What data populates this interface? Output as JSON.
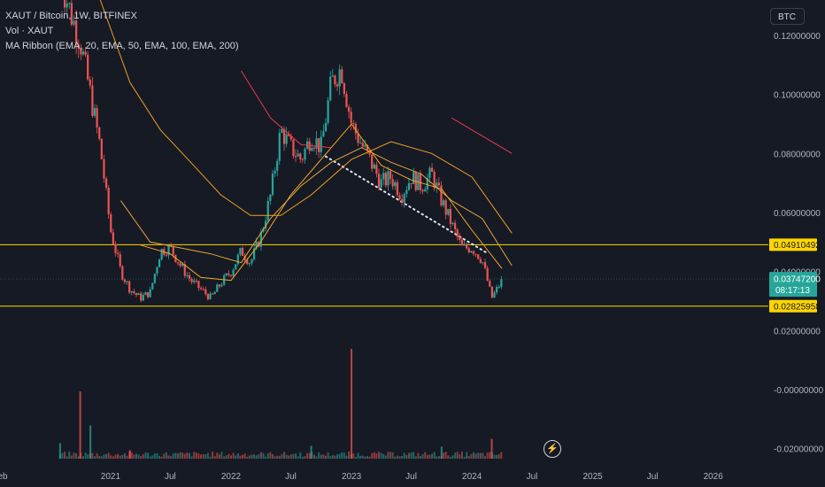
{
  "legend": {
    "symbol": "XAUT / Bitcoin, 1W, BITFINEX",
    "volume": "Vol · XAUT",
    "ma_ribbon": "MA Ribbon (EMA, 20, EMA, 50, EMA, 100, EMA, 200)"
  },
  "currency_button": "BTC",
  "colors": {
    "background": "#161a25",
    "up": "#26a69a",
    "down": "#ef5350",
    "ema20": "#f5a623",
    "ema50": "#e8a33a",
    "ema100": "#f0a020",
    "ema200": "#e53950",
    "level_line": "#ffd600",
    "price_label": "#26a69a"
  },
  "chart_data": {
    "type": "candlestick",
    "title": "",
    "y_axis": {
      "ticks": [
        "0.12000000",
        "0.10000000",
        "0.08000000",
        "0.06000000",
        "0.04000000",
        "0.02000000",
        "-0.00000000",
        "-0.02000000"
      ],
      "range": [
        -0.024,
        0.132
      ]
    },
    "x_axis": {
      "ticks": [
        "Feb",
        "2021",
        "Jul",
        "2022",
        "Jul",
        "2023",
        "Jul",
        "2024",
        "Jul",
        "2025",
        "Jul",
        "2026"
      ],
      "range": [
        "2020-02",
        "2026-06"
      ]
    },
    "horizontal_levels": [
      "0.04910492",
      "0.02825958"
    ],
    "last_price": "0.03747200",
    "countdown": "08:17:13",
    "price_path": [
      [
        "2020-08-01",
        0.14
      ],
      [
        "2020-09-01",
        0.128
      ],
      [
        "2020-10-01",
        0.118
      ],
      [
        "2020-11-01",
        0.1
      ],
      [
        "2020-12-01",
        0.082
      ],
      [
        "2021-01-01",
        0.054
      ],
      [
        "2021-02-01",
        0.04
      ],
      [
        "2021-03-01",
        0.034
      ],
      [
        "2021-04-01",
        0.031
      ],
      [
        "2021-05-01",
        0.033
      ],
      [
        "2021-06-01",
        0.047
      ],
      [
        "2021-07-01",
        0.048
      ],
      [
        "2021-08-01",
        0.042
      ],
      [
        "2021-09-01",
        0.037
      ],
      [
        "2021-10-01",
        0.034
      ],
      [
        "2021-11-01",
        0.031
      ],
      [
        "2021-12-01",
        0.036
      ],
      [
        "2022-01-01",
        0.04
      ],
      [
        "2022-02-01",
        0.047
      ],
      [
        "2022-03-01",
        0.043
      ],
      [
        "2022-04-01",
        0.052
      ],
      [
        "2022-05-01",
        0.066
      ],
      [
        "2022-06-01",
        0.088
      ],
      [
        "2022-07-01",
        0.082
      ],
      [
        "2022-08-01",
        0.078
      ],
      [
        "2022-09-01",
        0.086
      ],
      [
        "2022-10-01",
        0.082
      ],
      [
        "2022-11-01",
        0.104
      ],
      [
        "2022-12-01",
        0.109
      ],
      [
        "2023-01-01",
        0.09
      ],
      [
        "2023-02-01",
        0.083
      ],
      [
        "2023-03-01",
        0.077
      ],
      [
        "2023-04-01",
        0.07
      ],
      [
        "2023-05-01",
        0.072
      ],
      [
        "2023-06-01",
        0.066
      ],
      [
        "2023-07-01",
        0.072
      ],
      [
        "2023-08-01",
        0.069
      ],
      [
        "2023-09-01",
        0.073
      ],
      [
        "2023-10-01",
        0.064
      ],
      [
        "2023-11-01",
        0.056
      ],
      [
        "2023-12-01",
        0.048
      ],
      [
        "2024-01-01",
        0.048
      ],
      [
        "2024-02-01",
        0.044
      ],
      [
        "2024-03-01",
        0.031
      ],
      [
        "2024-04-01",
        0.037
      ]
    ],
    "ema_20": [
      [
        "2021-04-01",
        0.049
      ],
      [
        "2021-07-01",
        0.046
      ],
      [
        "2021-10-01",
        0.038
      ],
      [
        "2022-01-01",
        0.037
      ],
      [
        "2022-04-01",
        0.05
      ],
      [
        "2022-07-01",
        0.066
      ],
      [
        "2022-10-01",
        0.078
      ],
      [
        "2023-01-01",
        0.09
      ],
      [
        "2023-04-01",
        0.076
      ],
      [
        "2023-07-01",
        0.071
      ],
      [
        "2023-10-01",
        0.068
      ],
      [
        "2024-01-01",
        0.054
      ],
      [
        "2024-04-01",
        0.041
      ]
    ],
    "ema_50": [
      [
        "2021-02-01",
        0.064
      ],
      [
        "2021-05-01",
        0.05
      ],
      [
        "2021-08-01",
        0.048
      ],
      [
        "2021-11-01",
        0.046
      ],
      [
        "2022-02-01",
        0.043
      ],
      [
        "2022-05-01",
        0.058
      ],
      [
        "2022-08-01",
        0.069
      ],
      [
        "2022-11-01",
        0.077
      ],
      [
        "2023-02-01",
        0.082
      ],
      [
        "2023-05-01",
        0.077
      ],
      [
        "2023-08-01",
        0.073
      ],
      [
        "2023-11-01",
        0.064
      ],
      [
        "2024-02-01",
        0.058
      ],
      [
        "2024-05-01",
        0.042
      ]
    ],
    "ema_100": [
      [
        "2020-12-01",
        0.132
      ],
      [
        "2021-03-01",
        0.104
      ],
      [
        "2021-06-01",
        0.088
      ],
      [
        "2021-09-01",
        0.077
      ],
      [
        "2021-12-01",
        0.066
      ],
      [
        "2022-03-01",
        0.059
      ],
      [
        "2022-06-01",
        0.059
      ],
      [
        "2022-09-01",
        0.066
      ],
      [
        "2023-01-01",
        0.078
      ],
      [
        "2023-05-01",
        0.084
      ],
      [
        "2023-09-01",
        0.08
      ],
      [
        "2024-01-01",
        0.072
      ],
      [
        "2024-05-01",
        0.053
      ]
    ],
    "ema_200": [
      [
        "2022-02-01",
        0.108
      ],
      [
        "2022-05-01",
        0.092
      ],
      [
        "2022-08-01",
        0.083
      ],
      [
        "2022-11-01",
        0.082
      ]
    ],
    "ema_200_late": [
      [
        "2023-11-01",
        0.092
      ],
      [
        "2024-05-01",
        0.08
      ]
    ],
    "volume_spikes": [
      [
        "2020-08-01",
        0.22
      ],
      [
        "2020-10-01",
        0.95
      ],
      [
        "2020-11-01",
        0.47
      ],
      [
        "2021-03-01",
        0.12
      ],
      [
        "2022-09-01",
        0.18
      ],
      [
        "2023-01-01",
        1.55
      ],
      [
        "2023-10-01",
        0.17
      ],
      [
        "2024-03-01",
        0.28
      ]
    ]
  }
}
